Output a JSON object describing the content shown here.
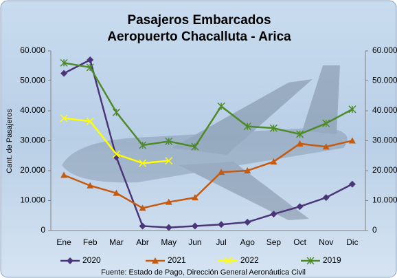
{
  "chart_data": {
    "type": "line",
    "title": "Pasajeros Embarcados",
    "subtitle": "Aeropuerto Chacalluta - Arica",
    "y_label": "Cant. de Pasajeros",
    "source": "Fuente: Estado de Pago, Dirección General Aeronáutica Civil",
    "categories": [
      "Ene",
      "Feb",
      "Mar",
      "Abr",
      "May",
      "Jun",
      "Jul",
      "Ago",
      "Sep",
      "Oct",
      "Nov",
      "Dic"
    ],
    "ylim": [
      0,
      60000
    ],
    "yticks": [
      0,
      {
        "value": 10000,
        "label": "10.000"
      },
      {
        "value": 20000,
        "label": "20.000"
      },
      {
        "value": 30000,
        "label": "30.000"
      },
      {
        "value": 40000,
        "label": "40.000"
      },
      {
        "value": 50000,
        "label": "50.000"
      },
      {
        "value": 60000,
        "label": "60.000"
      }
    ],
    "series": [
      {
        "name": "2020",
        "color": "#4b3579",
        "marker": "diamond",
        "values": [
          52500,
          57000,
          24500,
          1500,
          1000,
          1500,
          2000,
          2800,
          5500,
          8000,
          11000,
          15500
        ]
      },
      {
        "name": "2021",
        "color": "#c55a11",
        "marker": "triangle",
        "values": [
          18500,
          15000,
          12500,
          7500,
          9500,
          11000,
          19500,
          20000,
          23000,
          29000,
          28000,
          30000
        ]
      },
      {
        "name": "2022",
        "color": "#ffff00",
        "marker": "cross",
        "values": [
          37500,
          36500,
          25500,
          22500,
          23300,
          null,
          null,
          null,
          null,
          null,
          null,
          null
        ]
      },
      {
        "name": "2019",
        "color": "#4e8a2a",
        "marker": "star",
        "values": [
          56000,
          54500,
          39500,
          28500,
          29800,
          28000,
          41500,
          34800,
          34200,
          32200,
          35800,
          40500
        ]
      }
    ]
  }
}
